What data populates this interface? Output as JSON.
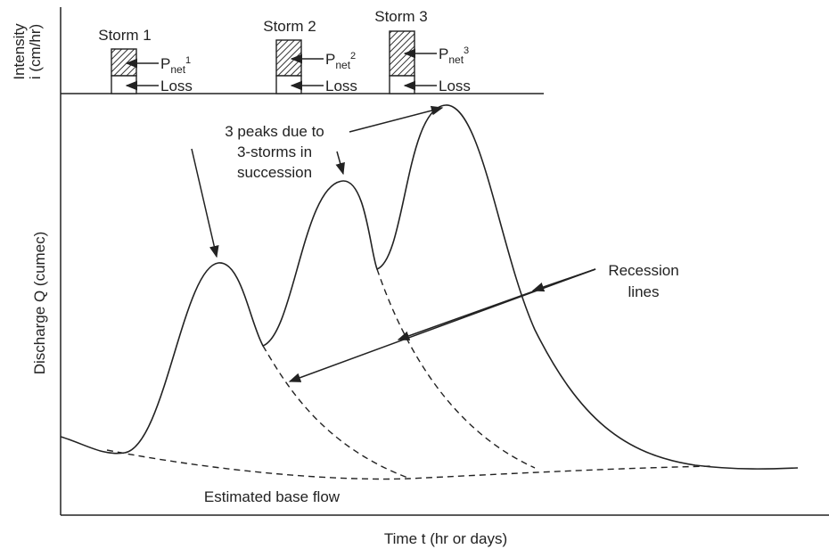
{
  "axes": {
    "x_label": "Time t (hr or days)",
    "y_label": "Discharge Q (cumec)",
    "intensity_label": [
      "Intensity",
      "i (cm/hr)"
    ]
  },
  "storms": [
    {
      "name": "Storm 1",
      "pnet": {
        "base": "P",
        "sub": "net",
        "sup": "1"
      },
      "loss": "Loss"
    },
    {
      "name": "Storm 2",
      "pnet": {
        "base": "P",
        "sub": "net",
        "sup": "2"
      },
      "loss": "Loss"
    },
    {
      "name": "Storm 3",
      "pnet": {
        "base": "P",
        "sub": "net",
        "sup": "3"
      },
      "loss": "Loss"
    }
  ],
  "annotations": {
    "peaks": [
      "3 peaks due to",
      "3-storms in",
      "succession"
    ],
    "recession": [
      "Recession",
      "lines"
    ],
    "base_flow": "Estimated base flow"
  }
}
